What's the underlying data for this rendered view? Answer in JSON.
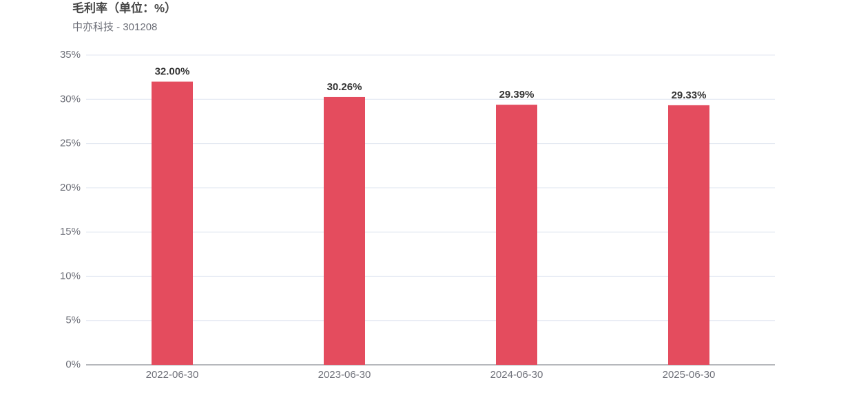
{
  "chart_data": {
    "type": "bar",
    "title": "毛利率（单位：%）",
    "subtitle": "中亦科技 - 301208",
    "categories": [
      "2022-06-30",
      "2023-06-30",
      "2024-06-30",
      "2025-06-30"
    ],
    "values": [
      32.0,
      30.26,
      29.39,
      29.33
    ],
    "value_labels": [
      "32.00%",
      "30.26%",
      "29.39%",
      "29.33%"
    ],
    "color": "#e44c5e",
    "ylim": [
      0,
      35
    ],
    "yticks": [
      {
        "value": 0,
        "label": "0%"
      },
      {
        "value": 5,
        "label": "5%"
      },
      {
        "value": 10,
        "label": "10%"
      },
      {
        "value": 15,
        "label": "15%"
      },
      {
        "value": 20,
        "label": "20%"
      },
      {
        "value": 25,
        "label": "25%"
      },
      {
        "value": 30,
        "label": "30%"
      },
      {
        "value": 35,
        "label": "35%"
      }
    ],
    "grid": true
  }
}
